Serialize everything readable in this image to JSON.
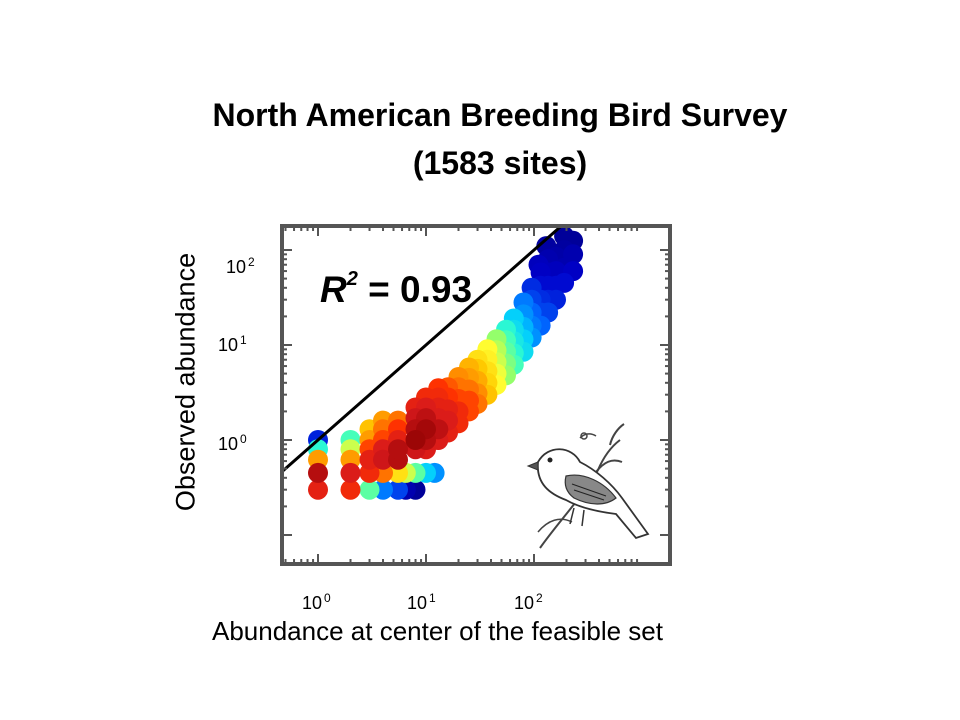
{
  "title_line1": "North American Breeding Bird Survey",
  "title_line2": "(1583 sites)",
  "r2": {
    "label": "R",
    "exp": "2",
    "value": "= 0.93"
  },
  "chart_data": {
    "type": "scatter",
    "title": "North American Breeding Bird Survey (1583 sites)",
    "xlabel": "Abundance at center of the feasible set",
    "ylabel": "Observed abundance",
    "xscale": "log",
    "yscale": "log",
    "xlim": [
      0.6,
      600
    ],
    "ylim": [
      0.2,
      250
    ],
    "x_ticks": [
      {
        "base": "10",
        "exp": "0",
        "value": 1
      },
      {
        "base": "10",
        "exp": "1",
        "value": 10
      },
      {
        "base": "10",
        "exp": "2",
        "value": 100
      }
    ],
    "y_ticks": [
      {
        "base": "10",
        "exp": "2",
        "value": 100
      },
      {
        "base": "10",
        "exp": "1",
        "value": 10
      },
      {
        "base": "10",
        "exp": "0",
        "value": 1
      }
    ],
    "reference_line": "1:1",
    "annotation": "R2 = 0.93",
    "colormap": [
      "#8b0000",
      "#d7191c",
      "#ff3300",
      "#ff8800",
      "#ffcc00",
      "#ffff33",
      "#99ff66",
      "#33ffcc",
      "#00ccff",
      "#0066ff",
      "#0000cc",
      "#00008b"
    ],
    "legend": "none",
    "grid": false,
    "points": [
      {
        "x": 1,
        "y": 0.3,
        "c": 0.12
      },
      {
        "x": 1,
        "y": 0.45,
        "c": 0.05
      },
      {
        "x": 1,
        "y": 0.62,
        "c": 0.3
      },
      {
        "x": 1,
        "y": 0.8,
        "c": 0.65
      },
      {
        "x": 1,
        "y": 1.0,
        "c": 0.88
      },
      {
        "x": 2,
        "y": 0.3,
        "c": 0.15
      },
      {
        "x": 2,
        "y": 0.45,
        "c": 0.1
      },
      {
        "x": 2,
        "y": 0.62,
        "c": 0.3
      },
      {
        "x": 2,
        "y": 0.8,
        "c": 0.5
      },
      {
        "x": 2,
        "y": 1.0,
        "c": 0.62
      },
      {
        "x": 3,
        "y": 0.3,
        "c": 0.6
      },
      {
        "x": 3,
        "y": 0.45,
        "c": 0.15
      },
      {
        "x": 3,
        "y": 0.62,
        "c": 0.12
      },
      {
        "x": 3,
        "y": 0.8,
        "c": 0.2
      },
      {
        "x": 3,
        "y": 1.0,
        "c": 0.3
      },
      {
        "x": 3,
        "y": 1.3,
        "c": 0.35
      },
      {
        "x": 4,
        "y": 0.3,
        "c": 0.8
      },
      {
        "x": 4,
        "y": 0.45,
        "c": 0.25
      },
      {
        "x": 4,
        "y": 0.62,
        "c": 0.08
      },
      {
        "x": 4,
        "y": 0.8,
        "c": 0.1
      },
      {
        "x": 4,
        "y": 1.0,
        "c": 0.2
      },
      {
        "x": 4,
        "y": 1.3,
        "c": 0.25
      },
      {
        "x": 4,
        "y": 1.6,
        "c": 0.3
      },
      {
        "x": 5.5,
        "y": 0.3,
        "c": 0.85
      },
      {
        "x": 5.5,
        "y": 0.45,
        "c": 0.4
      },
      {
        "x": 5.5,
        "y": 0.62,
        "c": 0.05
      },
      {
        "x": 5.5,
        "y": 0.8,
        "c": 0.05
      },
      {
        "x": 5.5,
        "y": 1.0,
        "c": 0.12
      },
      {
        "x": 5.5,
        "y": 1.3,
        "c": 0.18
      },
      {
        "x": 5.5,
        "y": 1.6,
        "c": 0.25
      },
      {
        "x": 6.5,
        "y": 0.3,
        "c": 0.95
      },
      {
        "x": 6.5,
        "y": 0.45,
        "c": 0.5
      },
      {
        "x": 8,
        "y": 0.3,
        "c": 0.98
      },
      {
        "x": 8,
        "y": 0.45,
        "c": 0.6
      },
      {
        "x": 10,
        "y": 0.45,
        "c": 0.72
      },
      {
        "x": 12,
        "y": 0.45,
        "c": 0.78
      },
      {
        "x": 8,
        "y": 0.8,
        "c": 0.08
      },
      {
        "x": 8,
        "y": 1.0,
        "c": 0.02
      },
      {
        "x": 8,
        "y": 1.3,
        "c": 0.05
      },
      {
        "x": 8,
        "y": 1.7,
        "c": 0.08
      },
      {
        "x": 8,
        "y": 2.2,
        "c": 0.12
      },
      {
        "x": 10,
        "y": 0.8,
        "c": 0.1
      },
      {
        "x": 10,
        "y": 1.0,
        "c": 0.05
      },
      {
        "x": 10,
        "y": 1.3,
        "c": 0.03
      },
      {
        "x": 10,
        "y": 1.7,
        "c": 0.06
      },
      {
        "x": 10,
        "y": 2.2,
        "c": 0.1
      },
      {
        "x": 10,
        "y": 2.8,
        "c": 0.15
      },
      {
        "x": 13,
        "y": 1.0,
        "c": 0.1
      },
      {
        "x": 13,
        "y": 1.3,
        "c": 0.06
      },
      {
        "x": 13,
        "y": 1.7,
        "c": 0.1
      },
      {
        "x": 13,
        "y": 2.2,
        "c": 0.12
      },
      {
        "x": 13,
        "y": 2.8,
        "c": 0.15
      },
      {
        "x": 13,
        "y": 3.5,
        "c": 0.18
      },
      {
        "x": 16,
        "y": 1.2,
        "c": 0.12
      },
      {
        "x": 16,
        "y": 1.6,
        "c": 0.1
      },
      {
        "x": 16,
        "y": 2.1,
        "c": 0.12
      },
      {
        "x": 16,
        "y": 2.8,
        "c": 0.18
      },
      {
        "x": 16,
        "y": 3.6,
        "c": 0.22
      },
      {
        "x": 20,
        "y": 1.5,
        "c": 0.15
      },
      {
        "x": 20,
        "y": 2.0,
        "c": 0.15
      },
      {
        "x": 20,
        "y": 2.7,
        "c": 0.2
      },
      {
        "x": 20,
        "y": 3.6,
        "c": 0.25
      },
      {
        "x": 20,
        "y": 4.6,
        "c": 0.28
      },
      {
        "x": 25,
        "y": 2.0,
        "c": 0.2
      },
      {
        "x": 25,
        "y": 2.6,
        "c": 0.2
      },
      {
        "x": 25,
        "y": 3.4,
        "c": 0.25
      },
      {
        "x": 25,
        "y": 4.5,
        "c": 0.3
      },
      {
        "x": 25,
        "y": 5.8,
        "c": 0.33
      },
      {
        "x": 30,
        "y": 2.4,
        "c": 0.25
      },
      {
        "x": 30,
        "y": 3.1,
        "c": 0.28
      },
      {
        "x": 30,
        "y": 4.2,
        "c": 0.32
      },
      {
        "x": 30,
        "y": 5.6,
        "c": 0.36
      },
      {
        "x": 30,
        "y": 7.0,
        "c": 0.4
      },
      {
        "x": 37,
        "y": 3.0,
        "c": 0.35
      },
      {
        "x": 37,
        "y": 4.0,
        "c": 0.38
      },
      {
        "x": 37,
        "y": 5.3,
        "c": 0.4
      },
      {
        "x": 37,
        "y": 7.0,
        "c": 0.43
      },
      {
        "x": 37,
        "y": 9.0,
        "c": 0.45
      },
      {
        "x": 45,
        "y": 3.8,
        "c": 0.45
      },
      {
        "x": 45,
        "y": 5.0,
        "c": 0.47
      },
      {
        "x": 45,
        "y": 6.6,
        "c": 0.5
      },
      {
        "x": 45,
        "y": 8.8,
        "c": 0.52
      },
      {
        "x": 45,
        "y": 11.5,
        "c": 0.55
      },
      {
        "x": 55,
        "y": 4.8,
        "c": 0.55
      },
      {
        "x": 55,
        "y": 6.4,
        "c": 0.57
      },
      {
        "x": 55,
        "y": 8.5,
        "c": 0.6
      },
      {
        "x": 55,
        "y": 11.2,
        "c": 0.62
      },
      {
        "x": 55,
        "y": 14.5,
        "c": 0.65
      },
      {
        "x": 65,
        "y": 6.2,
        "c": 0.62
      },
      {
        "x": 65,
        "y": 8.2,
        "c": 0.65
      },
      {
        "x": 65,
        "y": 11.0,
        "c": 0.68
      },
      {
        "x": 65,
        "y": 14.5,
        "c": 0.7
      },
      {
        "x": 65,
        "y": 19.0,
        "c": 0.72
      },
      {
        "x": 80,
        "y": 8.5,
        "c": 0.7
      },
      {
        "x": 80,
        "y": 11.5,
        "c": 0.72
      },
      {
        "x": 80,
        "y": 15.5,
        "c": 0.75
      },
      {
        "x": 80,
        "y": 21.0,
        "c": 0.78
      },
      {
        "x": 80,
        "y": 28.0,
        "c": 0.8
      },
      {
        "x": 95,
        "y": 12.0,
        "c": 0.78
      },
      {
        "x": 95,
        "y": 16.0,
        "c": 0.8
      },
      {
        "x": 95,
        "y": 22.0,
        "c": 0.82
      },
      {
        "x": 95,
        "y": 30.0,
        "c": 0.85
      },
      {
        "x": 95,
        "y": 40.0,
        "c": 0.87
      },
      {
        "x": 115,
        "y": 16.0,
        "c": 0.82
      },
      {
        "x": 115,
        "y": 22.0,
        "c": 0.85
      },
      {
        "x": 115,
        "y": 30.0,
        "c": 0.87
      },
      {
        "x": 115,
        "y": 42.0,
        "c": 0.9
      },
      {
        "x": 115,
        "y": 58.0,
        "c": 0.92
      },
      {
        "x": 135,
        "y": 22.0,
        "c": 0.85
      },
      {
        "x": 135,
        "y": 30.0,
        "c": 0.88
      },
      {
        "x": 135,
        "y": 42.0,
        "c": 0.9
      },
      {
        "x": 135,
        "y": 58.0,
        "c": 0.93
      },
      {
        "x": 135,
        "y": 80.0,
        "c": 0.95
      },
      {
        "x": 160,
        "y": 30.0,
        "c": 0.88
      },
      {
        "x": 160,
        "y": 42.0,
        "c": 0.9
      },
      {
        "x": 160,
        "y": 60.0,
        "c": 0.93
      },
      {
        "x": 160,
        "y": 85.0,
        "c": 0.96
      },
      {
        "x": 190,
        "y": 45.0,
        "c": 0.9
      },
      {
        "x": 190,
        "y": 65.0,
        "c": 0.95
      },
      {
        "x": 190,
        "y": 100.0,
        "c": 0.97
      },
      {
        "x": 190,
        "y": 140.0,
        "c": 0.98
      },
      {
        "x": 230,
        "y": 60.0,
        "c": 0.92
      },
      {
        "x": 230,
        "y": 90.0,
        "c": 0.95
      },
      {
        "x": 230,
        "y": 125.0,
        "c": 0.98
      },
      {
        "x": 110,
        "y": 70.0,
        "c": 0.93
      },
      {
        "x": 130,
        "y": 110.0,
        "c": 0.97
      }
    ]
  }
}
